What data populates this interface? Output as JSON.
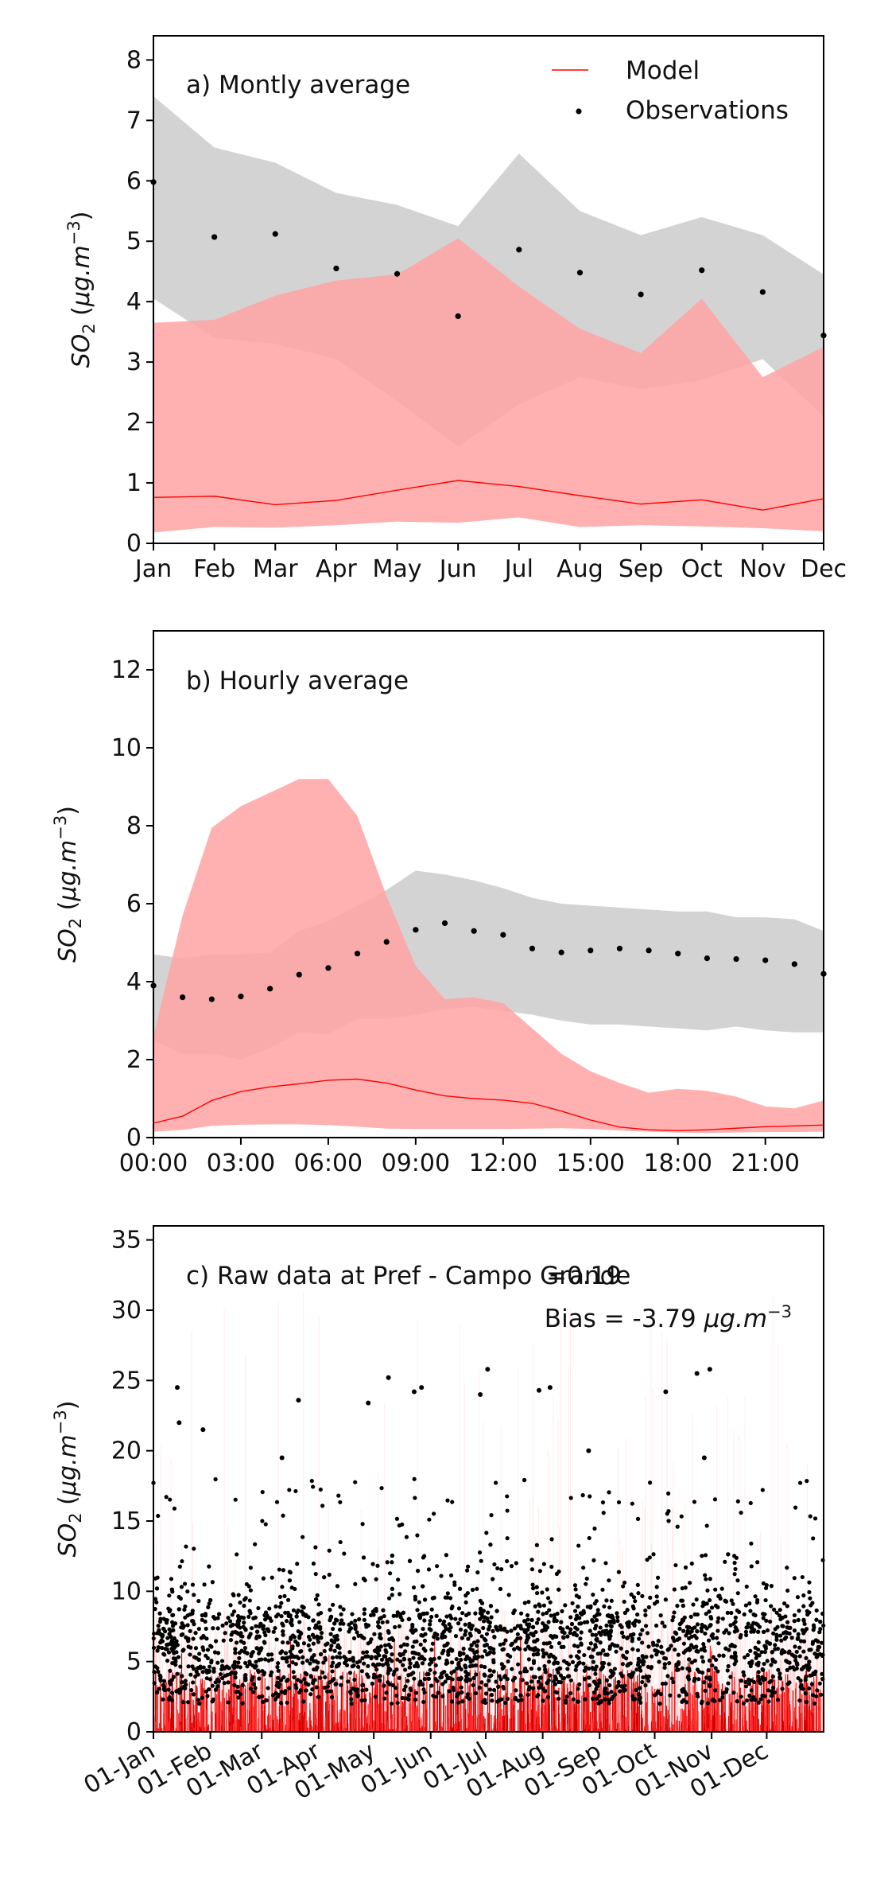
{
  "chart_data": [
    {
      "type": "line",
      "panel_label": "a) Montly average",
      "ylabel": "SO<sub>2</sub> (μg.m<sup>-3</sup>)",
      "ylabel_parts": [
        "SO",
        "2",
        " (",
        "μg.m",
        "−3",
        ")"
      ],
      "ylim": [
        0,
        8.4
      ],
      "yticks": [
        0,
        1,
        2,
        3,
        4,
        5,
        6,
        7,
        8
      ],
      "categories": [
        "Jan",
        "Feb",
        "Mar",
        "Apr",
        "May",
        "Jun",
        "Jul",
        "Aug",
        "Sep",
        "Oct",
        "Nov",
        "Dec"
      ],
      "legend": {
        "position": "top-right",
        "entries": [
          "Model",
          "Observations"
        ]
      },
      "observations_band": {
        "upper": [
          7.4,
          6.55,
          6.3,
          5.8,
          5.6,
          5.25,
          6.45,
          5.5,
          5.1,
          5.4,
          5.1,
          4.45
        ],
        "lower": [
          4.05,
          3.4,
          3.3,
          3.05,
          2.35,
          1.6,
          2.3,
          2.75,
          2.55,
          2.7,
          3.05,
          2.1
        ]
      },
      "model_band": {
        "upper": [
          3.65,
          3.7,
          4.1,
          4.35,
          4.45,
          5.05,
          4.25,
          3.55,
          3.15,
          4.05,
          2.75,
          3.25
        ],
        "lower": [
          0.18,
          0.27,
          0.26,
          0.3,
          0.36,
          0.34,
          0.43,
          0.27,
          0.3,
          0.28,
          0.25,
          0.2
        ]
      },
      "series": [
        {
          "name": "Model",
          "values": [
            0.76,
            0.78,
            0.64,
            0.71,
            0.88,
            1.04,
            0.94,
            0.79,
            0.65,
            0.72,
            0.55,
            0.74
          ]
        },
        {
          "name": "Observations",
          "values": [
            5.98,
            5.07,
            5.12,
            4.55,
            4.46,
            3.76,
            4.86,
            4.48,
            4.12,
            4.52,
            4.16,
            3.44
          ]
        }
      ],
      "colors": {
        "model": "#ff0000",
        "model_band": "#ffa3a3",
        "obs_band": "#c8c8c8",
        "obs": "#000000"
      }
    },
    {
      "type": "line",
      "panel_label": "b) Hourly average",
      "ylabel_parts": [
        "SO",
        "2",
        " (",
        "μg.m",
        "−3",
        ")"
      ],
      "ylim": [
        0,
        13
      ],
      "yticks": [
        0,
        2,
        4,
        6,
        8,
        10,
        12
      ],
      "xlim": [
        0,
        23
      ],
      "xticks": [
        "00:00",
        "03:00",
        "06:00",
        "09:00",
        "12:00",
        "15:00",
        "18:00",
        "21:00"
      ],
      "x": [
        0,
        1,
        2,
        3,
        4,
        5,
        6,
        7,
        8,
        9,
        10,
        11,
        12,
        13,
        14,
        15,
        16,
        17,
        18,
        19,
        20,
        21,
        22,
        23
      ],
      "observations_band": {
        "upper": [
          4.7,
          4.6,
          4.7,
          4.7,
          4.75,
          5.3,
          5.55,
          5.95,
          6.35,
          6.85,
          6.75,
          6.6,
          6.4,
          6.15,
          6.0,
          5.95,
          5.9,
          5.85,
          5.8,
          5.8,
          5.65,
          5.65,
          5.6,
          5.3
        ],
        "lower": [
          2.5,
          2.15,
          2.15,
          2.0,
          2.3,
          2.7,
          2.65,
          3.05,
          3.05,
          3.15,
          3.3,
          3.35,
          3.25,
          3.15,
          3.0,
          2.9,
          2.9,
          2.85,
          2.8,
          2.75,
          2.85,
          2.75,
          2.7,
          2.7
        ]
      },
      "model_band": {
        "upper": [
          2.6,
          5.7,
          7.95,
          8.5,
          8.85,
          9.2,
          9.2,
          8.25,
          6.2,
          4.4,
          3.55,
          3.6,
          3.45,
          2.8,
          2.15,
          1.7,
          1.4,
          1.15,
          1.25,
          1.2,
          1.05,
          0.8,
          0.75,
          0.95
        ],
        "lower": [
          0.15,
          0.2,
          0.3,
          0.33,
          0.34,
          0.34,
          0.32,
          0.28,
          0.23,
          0.22,
          0.22,
          0.22,
          0.22,
          0.23,
          0.24,
          0.22,
          0.18,
          0.15,
          0.13,
          0.12,
          0.13,
          0.14,
          0.14,
          0.15
        ]
      },
      "series": [
        {
          "name": "Model",
          "values": [
            0.37,
            0.55,
            0.95,
            1.18,
            1.3,
            1.38,
            1.47,
            1.5,
            1.4,
            1.22,
            1.07,
            1.0,
            0.96,
            0.88,
            0.68,
            0.45,
            0.27,
            0.2,
            0.18,
            0.2,
            0.24,
            0.28,
            0.3,
            0.32
          ]
        },
        {
          "name": "Observations",
          "values": [
            3.9,
            3.6,
            3.55,
            3.62,
            3.82,
            4.18,
            4.35,
            4.72,
            5.02,
            5.33,
            5.5,
            5.3,
            5.2,
            4.85,
            4.75,
            4.8,
            4.85,
            4.8,
            4.72,
            4.6,
            4.58,
            4.55,
            4.45,
            4.2
          ]
        }
      ]
    },
    {
      "type": "scatter",
      "panel_label": "c) Raw data at Pref - Campo Grande",
      "stat_r_text": "=0.19",
      "bias_prefix": "Bias = -3.79 ",
      "bias_unit_parts": [
        "μg.m",
        "−3"
      ],
      "ylabel_parts": [
        "SO",
        "2",
        " (",
        "μg.m",
        "−3",
        ")"
      ],
      "ylim": [
        0,
        36
      ],
      "yticks": [
        0,
        5,
        10,
        15,
        20,
        25,
        30,
        35
      ],
      "xlim_days": [
        0,
        365
      ],
      "xticks": [
        "01-Jan",
        "01-Feb",
        "01-Mar",
        "01-Apr",
        "01-May",
        "01-Jun",
        "01-Jul",
        "01-Aug",
        "01-Sep",
        "01-Oct",
        "01-Nov",
        "01-Dec"
      ],
      "xtick_days": [
        0,
        31,
        59,
        90,
        120,
        151,
        181,
        212,
        243,
        273,
        304,
        334
      ],
      "highlight_points": [
        {
          "day": 13,
          "value": 24.5
        },
        {
          "day": 14,
          "value": 22
        },
        {
          "day": 27,
          "value": 21.5
        },
        {
          "day": 70,
          "value": 19.5
        },
        {
          "day": 79,
          "value": 23.6
        },
        {
          "day": 117,
          "value": 23.4
        },
        {
          "day": 128,
          "value": 25.2
        },
        {
          "day": 142,
          "value": 24.2
        },
        {
          "day": 146,
          "value": 24.5
        },
        {
          "day": 178,
          "value": 24
        },
        {
          "day": 182,
          "value": 25.8
        },
        {
          "day": 210,
          "value": 24.3
        },
        {
          "day": 216,
          "value": 24.5
        },
        {
          "day": 279,
          "value": 24.2
        },
        {
          "day": 296,
          "value": 25.5
        },
        {
          "day": 303,
          "value": 25.8
        },
        {
          "day": 237,
          "value": 20
        },
        {
          "day": 300,
          "value": 19.5
        }
      ]
    }
  ]
}
